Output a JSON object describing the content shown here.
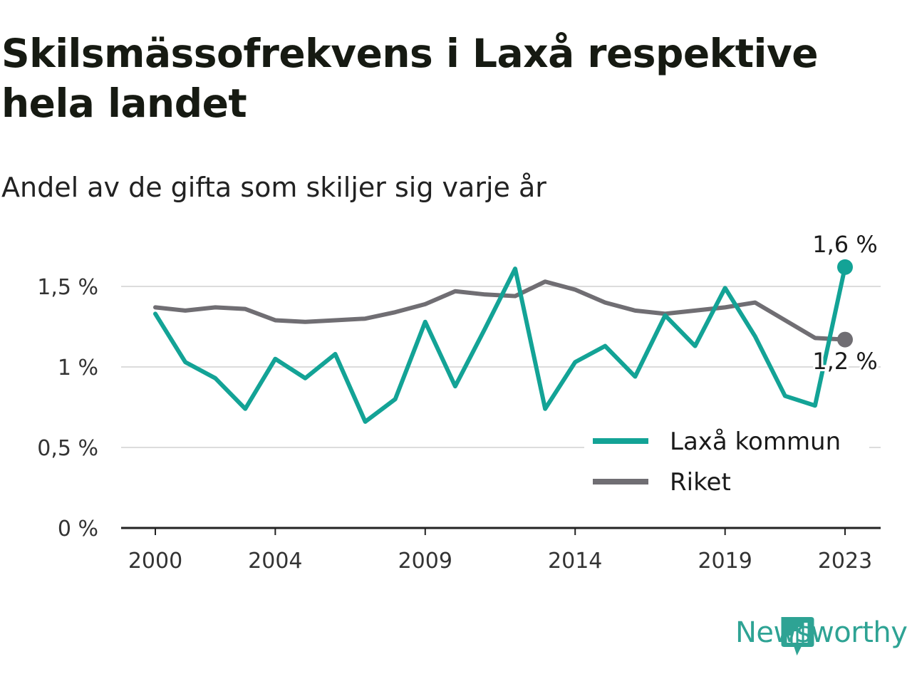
{
  "title": "Skilsmässofrekvens i Laxå respektive hela landet",
  "subtitle": "Andel av de gifta som skiljer sig varje år",
  "brand": {
    "name": "Newsworthy",
    "icon": "bar-chart-speech-bubble-icon",
    "color": "#2ea394"
  },
  "chart_data": {
    "type": "line",
    "x": [
      2000,
      2001,
      2002,
      2003,
      2004,
      2005,
      2006,
      2007,
      2008,
      2009,
      2010,
      2011,
      2012,
      2013,
      2014,
      2015,
      2016,
      2017,
      2018,
      2019,
      2020,
      2021,
      2022,
      2023
    ],
    "x_ticks": [
      "2000",
      "2004",
      "2009",
      "2014",
      "2019",
      "2023"
    ],
    "y_ticks": [
      "0 %",
      "0,5 %",
      "1 %",
      "1,5 %"
    ],
    "ylim": [
      0,
      1.7
    ],
    "grid": true,
    "legend_position": "bottom-right",
    "series": [
      {
        "name": "Laxå kommun",
        "color": "#13a396",
        "values": [
          1.33,
          1.03,
          0.93,
          0.74,
          1.05,
          0.93,
          1.08,
          0.66,
          0.8,
          1.28,
          0.88,
          1.24,
          1.61,
          0.74,
          1.03,
          1.13,
          0.94,
          1.32,
          1.13,
          1.49,
          1.19,
          0.82,
          0.76,
          1.62
        ],
        "end_label": "1,6 %"
      },
      {
        "name": "Riket",
        "color": "#706e73",
        "values": [
          1.37,
          1.35,
          1.37,
          1.36,
          1.29,
          1.28,
          1.29,
          1.3,
          1.34,
          1.39,
          1.47,
          1.45,
          1.44,
          1.53,
          1.48,
          1.4,
          1.35,
          1.33,
          1.35,
          1.37,
          1.4,
          1.29,
          1.18,
          1.17
        ],
        "end_label": "1,2 %"
      }
    ]
  }
}
